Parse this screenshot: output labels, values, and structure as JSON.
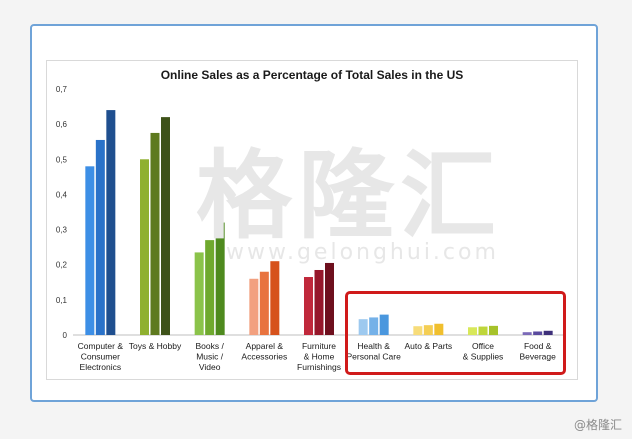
{
  "chart_data": {
    "type": "bar",
    "title": "Online Sales as a Percentage of Total Sales in the US",
    "xlabel": "",
    "ylabel": "",
    "ylim": [
      0,
      0.7
    ],
    "yticks": [
      "0",
      "0,1",
      "0,2",
      "0,3",
      "0,4",
      "0,5",
      "0,6",
      "0,7"
    ],
    "grid": false,
    "legend": "none",
    "categories": [
      [
        "Computer &",
        "Consumer",
        "Electronics"
      ],
      [
        "Toys & Hobby"
      ],
      [
        "Books /",
        "Music /",
        "Video"
      ],
      [
        "Apparel &",
        "Accessories"
      ],
      [
        "Furniture",
        "& Home",
        "Furnishings"
      ],
      [
        "Health &",
        "Personal Care"
      ],
      [
        "Auto & Parts"
      ],
      [
        "Office",
        "& Supplies"
      ],
      [
        "Food &",
        "Beverage"
      ]
    ],
    "values": [
      [
        0.48,
        0.555,
        0.64
      ],
      [
        0.5,
        0.575,
        0.62
      ],
      [
        0.235,
        0.27,
        0.32
      ],
      [
        0.16,
        0.18,
        0.21
      ],
      [
        0.165,
        0.185,
        0.205
      ],
      [
        0.045,
        0.05,
        0.058
      ],
      [
        0.025,
        0.028,
        0.032
      ],
      [
        0.022,
        0.024,
        0.026
      ],
      [
        0.008,
        0.01,
        0.012
      ]
    ],
    "colors": [
      [
        "#3d8fe6",
        "#2a72c9",
        "#1f4f8f"
      ],
      [
        "#8fb02f",
        "#5e7a1f",
        "#3e5219"
      ],
      [
        "#8bc34a",
        "#6fa92e",
        "#4e8a1e"
      ],
      [
        "#f2a07f",
        "#e8733f",
        "#d6521c"
      ],
      [
        "#c0283b",
        "#96172a",
        "#6e0f1d"
      ],
      [
        "#9dc9ef",
        "#74b1e8",
        "#4a97de"
      ],
      [
        "#f7dc7a",
        "#f4ce54",
        "#f0bf2e"
      ],
      [
        "#d8e85a",
        "#bed63a",
        "#a6c22a"
      ],
      [
        "#7b6ab8",
        "#5a4a9e",
        "#3e307a"
      ]
    ]
  },
  "watermark": {
    "chinese": "格隆汇",
    "url": "www.gelonghui.com"
  },
  "credit": "@格隆汇"
}
